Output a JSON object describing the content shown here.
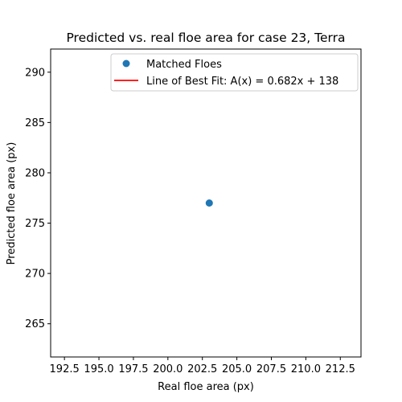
{
  "chart_data": {
    "type": "scatter",
    "title": "Predicted vs. real floe area  for case 23, Terra",
    "xlabel": "Real floe area (px)",
    "ylabel": "Predicted floe area (px)",
    "xlim": [
      191.5,
      214.0
    ],
    "ylim": [
      261.7,
      292.3
    ],
    "x_ticks": [
      192.5,
      195.0,
      197.5,
      200.0,
      202.5,
      205.0,
      207.5,
      210.0,
      212.5
    ],
    "x_tick_labels": [
      "192.5",
      "195.0",
      "197.5",
      "200.0",
      "202.5",
      "205.0",
      "207.5",
      "210.0",
      "212.5"
    ],
    "y_ticks": [
      265,
      270,
      275,
      280,
      285,
      290
    ],
    "y_tick_labels": [
      "265",
      "270",
      "275",
      "280",
      "285",
      "290"
    ],
    "grid": false,
    "legend_position": "top-right",
    "series": [
      {
        "name": "Matched Floes",
        "kind": "scatter",
        "color": "#1f77b4",
        "x": [
          203.0
        ],
        "y": [
          277.0
        ]
      },
      {
        "name": "Line of Best Fit: A(x) = 0.682x + 138",
        "kind": "line",
        "color": "#ff0000",
        "slope": 0.682,
        "intercept": 138
      }
    ]
  }
}
